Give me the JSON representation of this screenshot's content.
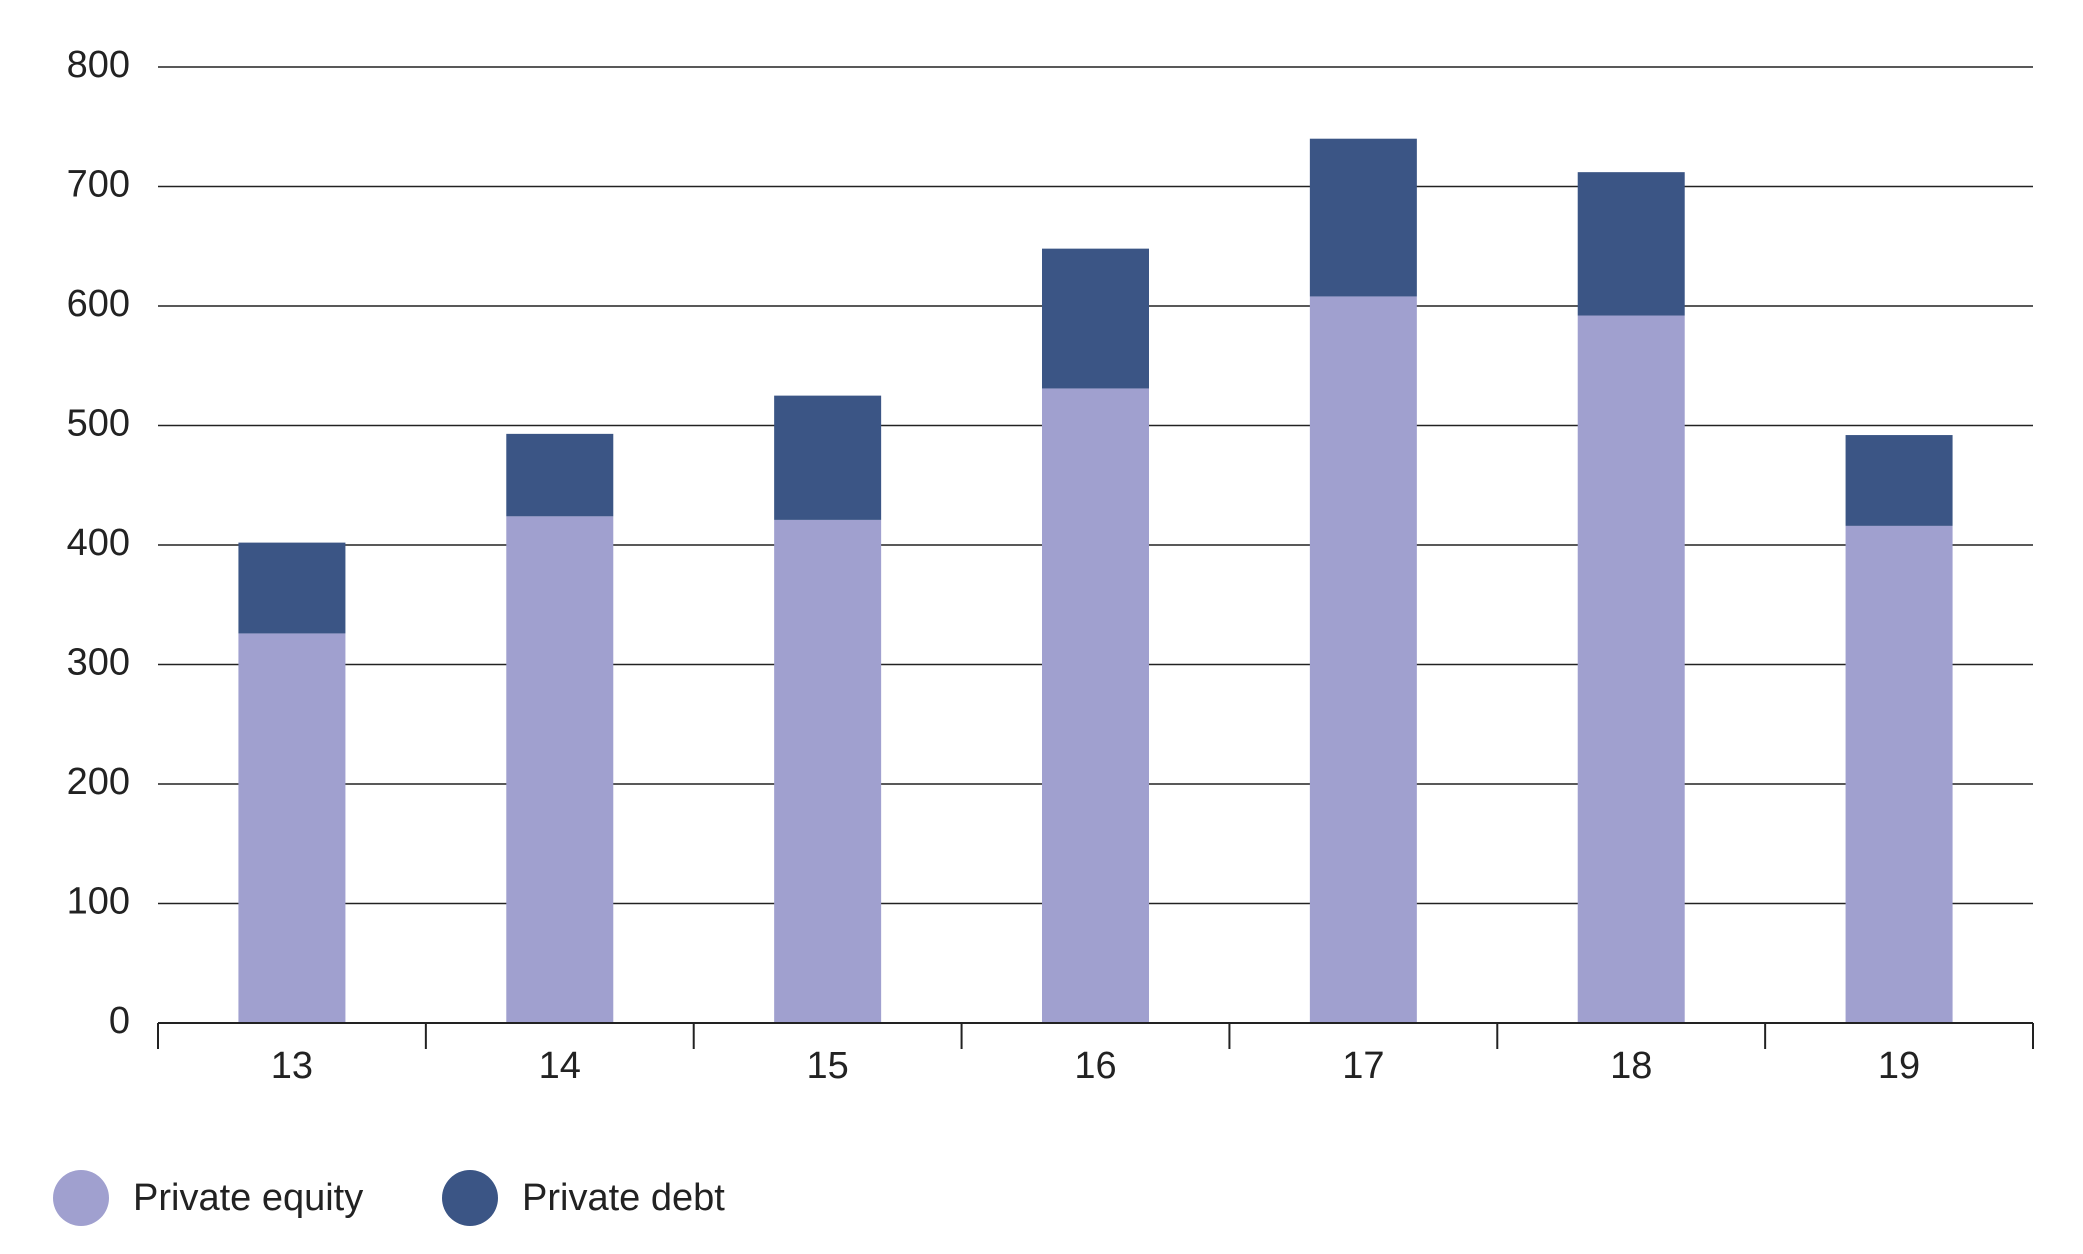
{
  "chart_data": {
    "type": "stacked_bar",
    "categories": [
      "13",
      "14",
      "15",
      "16",
      "17",
      "18",
      "19"
    ],
    "series": [
      {
        "name": "Private equity",
        "color": "#a0a0cf",
        "values": [
          326,
          424,
          421,
          531,
          608,
          592,
          416
        ]
      },
      {
        "name": "Private debt",
        "color": "#3b5585",
        "values": [
          76,
          69,
          104,
          117,
          132,
          120,
          76
        ]
      }
    ],
    "ylim": [
      0,
      800
    ],
    "yticks": [
      0,
      100,
      200,
      300,
      400,
      500,
      600,
      700,
      800
    ],
    "grid": true,
    "legend": "bottom-left"
  }
}
